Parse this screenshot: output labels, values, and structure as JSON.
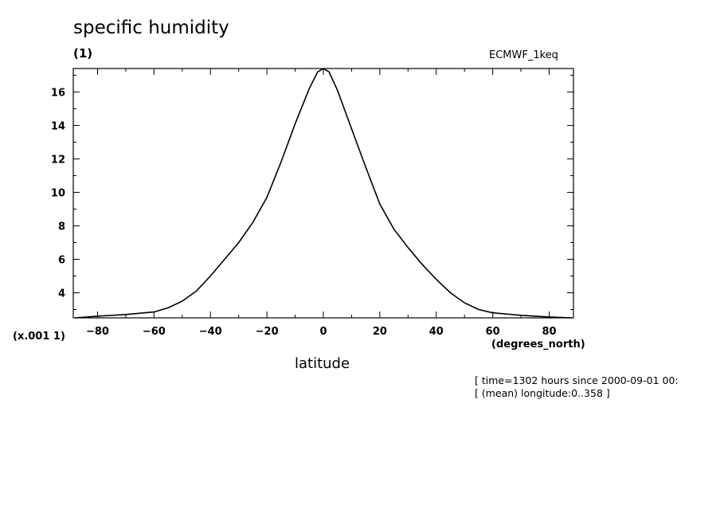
{
  "chart_data": {
    "type": "line",
    "title": "specific humidity",
    "units": "(1)",
    "source_label": "ECMWF_1keq",
    "y_scale_note": "(x.001 1)",
    "xlabel": "latitude",
    "x_units": "(degrees_north)",
    "xlim": [
      -88.6,
      88.6
    ],
    "ylim": [
      2.5,
      17.4
    ],
    "x_ticks": [
      -80,
      -60,
      -40,
      -20,
      0,
      20,
      40,
      60,
      80
    ],
    "y_ticks": [
      4,
      6,
      8,
      10,
      12,
      14,
      16
    ],
    "grid": false,
    "series": [
      {
        "x": [
          -88,
          -80,
          -70,
          -60,
          -55,
          -50,
          -45,
          -40,
          -35,
          -30,
          -25,
          -20,
          -15,
          -10,
          -5,
          -2,
          0,
          2,
          5,
          10,
          15,
          20,
          25,
          30,
          35,
          40,
          45,
          50,
          55,
          60,
          70,
          80,
          88
        ],
        "y": [
          2.5,
          2.6,
          2.7,
          2.85,
          3.1,
          3.5,
          4.1,
          5.0,
          6.0,
          7.0,
          8.2,
          9.7,
          11.8,
          14.1,
          16.2,
          17.2,
          17.5,
          17.2,
          16.1,
          13.8,
          11.5,
          9.3,
          7.8,
          6.7,
          5.7,
          4.8,
          4.0,
          3.4,
          3.0,
          2.8,
          2.65,
          2.55,
          2.5
        ]
      }
    ]
  },
  "annotations": {
    "time": "[ time=1302 hours since 2000-09-01 00:",
    "longitude": "[ (mean) longitude:0..358 ]"
  },
  "colors": {
    "line": "#000000",
    "background": "#ffffff"
  }
}
